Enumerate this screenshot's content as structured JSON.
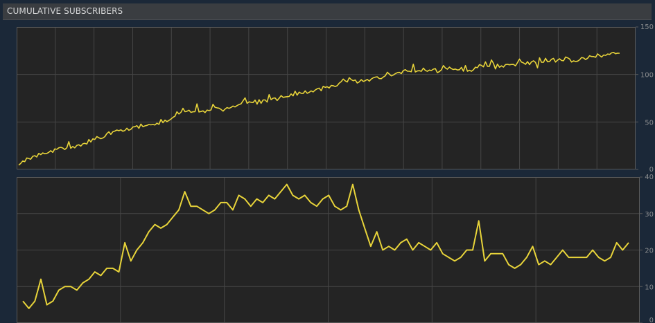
{
  "header": {
    "title": "CUMULATIVE SUBSCRIBERS"
  },
  "colors": {
    "line": "#e8d43a",
    "plot_bg": "#242424",
    "grid": "#464646",
    "border": "#5a5a5a",
    "tick_text": "#8a8c8e"
  },
  "chart_data": [
    {
      "type": "line",
      "title": "",
      "xlabel": "",
      "ylabel": "",
      "ylim": [
        0,
        150
      ],
      "yticks": [
        "0",
        "50",
        "100",
        "150"
      ],
      "x_gridlines": 16,
      "series": [
        {
          "values": [
            4.6,
            6.3,
            8.9,
            8.2,
            12.1,
            11.6,
            10.8,
            13.8,
            14.5,
            13.2,
            16.9,
            15.6,
            17.4,
            16.5,
            16.9,
            18.0,
            19.7,
            18.0,
            21.6,
            21.2,
            22.8,
            23.3,
            22.6,
            21.0,
            22.9,
            29.3,
            22.3,
            24.2,
            22.7,
            25.3,
            26.0,
            24.6,
            27.0,
            27.5,
            26.8,
            31.5,
            28.9,
            32.2,
            31.6,
            34.6,
            33.4,
            32.4,
            33.1,
            34.6,
            37.8,
            39.6,
            37.0,
            39.7,
            40.4,
            41.5,
            40.8,
            41.7,
            40.2,
            41.1,
            43.4,
            41.3,
            42.2,
            44.7,
            45.0,
            46.1,
            43.3,
            47.8,
            45.0,
            45.9,
            46.4,
            47.3,
            47.0,
            47.3,
            46.8,
            48.7,
            47.5,
            52.6,
            49.2,
            51.9,
            50.4,
            51.6,
            53.0,
            54.8,
            56.1,
            60.7,
            58.4,
            60.2,
            64.4,
            60.8,
            61.3,
            62.4,
            60.1,
            60.7,
            60.9,
            69.0,
            60.5,
            61.0,
            61.7,
            59.9,
            62.5,
            62.0,
            62.6,
            68.6,
            65.4,
            64.9,
            64.5,
            63.2,
            61.4,
            63.6,
            65.2,
            64.3,
            65.3,
            66.8,
            65.8,
            67.2,
            68.4,
            69.1,
            72.3,
            75.4,
            69.6,
            71.2,
            70.7,
            70.5,
            73.0,
            68.8,
            73.4,
            69.6,
            73.2,
            73.2,
            71.0,
            78.8,
            73.5,
            75.0,
            75.3,
            72.6,
            74.9,
            77.8,
            75.9,
            76.3,
            76.6,
            76.8,
            79.5,
            77.5,
            82.4,
            78.2,
            81.4,
            80.1,
            80.0,
            82.7,
            80.2,
            81.2,
            82.7,
            81.6,
            83.6,
            84.9,
            85.6,
            82.9,
            87.5,
            86.4,
            87.1,
            85.8,
            88.4,
            88.2,
            87.3,
            88.2,
            90.9,
            92.5,
            95.2,
            93.3,
            92.1,
            96.6,
            94.6,
            93.4,
            94.2,
            91.0,
            92.2,
            94.6,
            92.7,
            93.5,
            94.8,
            93.0,
            95.2,
            96.5,
            97.2,
            97.5,
            95.7,
            95.6,
            97.3,
            98.6,
            102.3,
            100.5,
            98.5,
            99.4,
            100.8,
            101.9,
            102.2,
            100.9,
            104.1,
            105.0,
            103.5,
            103.4,
            102.9,
            110.8,
            102.7,
            103.7,
            104.0,
            103.3,
            106.7,
            104.3,
            103.3,
            104.6,
            104.1,
            105.6,
            106.2,
            101.9,
            103.0,
            104.9,
            109.4,
            106.8,
            105.6,
            107.8,
            106.1,
            105.2,
            105.7,
            104.7,
            105.0,
            107.4,
            103.5,
            109.4,
            103.4,
            104.4,
            103.3,
            104.9,
            107.7,
            107.1,
            110.3,
            109.6,
            108.0,
            113.3,
            108.6,
            108.6,
            115.3,
            111.8,
            105.8,
            110.9,
            107.6,
            109.1,
            107.8,
            110.4,
            110.7,
            110.2,
            110.5,
            110.6,
            109.1,
            112.5,
            116.2,
            113.0,
            112.1,
            110.7,
            113.5,
            110.4,
            113.3,
            114.4,
            112.7,
            107.0,
            117.5,
            112.8,
            112.9,
            117.0,
            113.4,
            113.7,
            116.1,
            116.9,
            113.1,
            115.1,
            116.5,
            114.7,
            114.5,
            118.4,
            117.5,
            116.3,
            113.1,
            114.3,
            113.7,
            114.0,
            115.4,
            117.9,
            117.4,
            115.7,
            117.1,
            119.7,
            118.9,
            118.8,
            118.0,
            121.6,
            120.0,
            118.3,
            120.5,
            120.1,
            121.5,
            121.1,
            122.8,
            123.2,
            121.8,
            122.5,
            122.3
          ]
        }
      ]
    },
    {
      "type": "line",
      "title": "",
      "xlabel": "",
      "ylabel": "",
      "ylim": [
        0,
        40
      ],
      "yticks": [
        "0",
        "10",
        "20",
        "30",
        "40"
      ],
      "x_gridlines": 6,
      "series": [
        {
          "values": [
            6,
            4,
            6,
            12,
            5,
            6,
            9,
            10,
            10,
            9,
            11,
            12,
            14,
            13,
            15,
            15,
            14,
            22,
            17,
            20,
            22,
            25,
            27,
            26,
            27,
            29,
            31,
            36,
            32,
            32,
            31,
            30,
            31,
            33,
            33,
            31,
            35,
            34,
            32,
            34,
            33,
            35,
            34,
            36,
            38,
            35,
            34,
            35,
            33,
            32,
            34,
            35,
            32,
            31,
            32,
            38,
            31,
            26,
            21,
            25,
            20,
            21,
            20,
            22,
            23,
            20,
            22,
            21,
            20,
            22,
            19,
            18,
            17,
            18,
            20,
            20,
            28,
            17,
            19,
            19,
            19,
            16,
            15,
            16,
            18,
            21,
            16,
            17,
            16,
            18,
            20,
            18,
            18,
            18,
            18,
            20,
            18,
            17,
            18,
            22,
            20,
            22
          ]
        }
      ]
    }
  ]
}
